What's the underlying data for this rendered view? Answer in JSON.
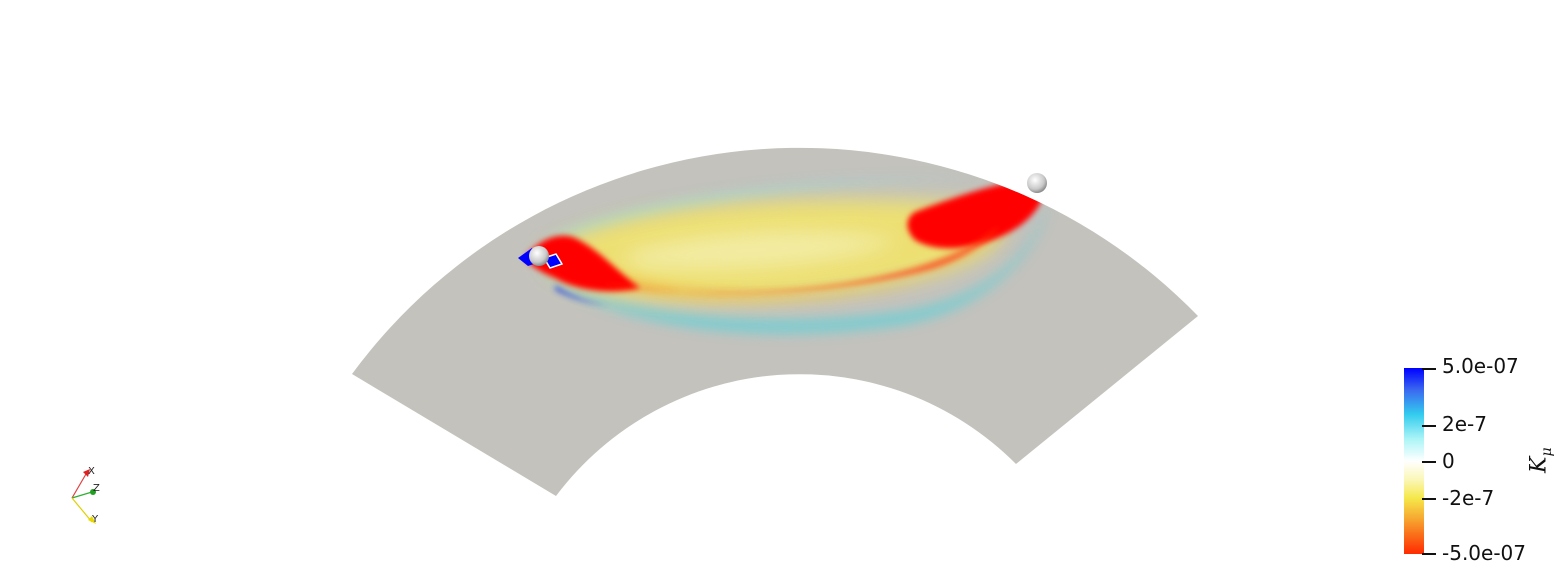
{
  "colorbar": {
    "title": "K",
    "title_sub": "μ",
    "max_label": "5.0e-07",
    "mid_high_label": "2e-7",
    "zero_label": "0",
    "mid_low_label": "-2e-7",
    "min_label": "-5.0e-07"
  },
  "orientation_axes": {
    "x_label": "X",
    "y_label": "Y",
    "z_label": "Z"
  },
  "colors": {
    "domain": "#c3c2bd",
    "positive": "#0000ff",
    "negative": "#ff0000",
    "station": "#e6e6e6"
  }
}
